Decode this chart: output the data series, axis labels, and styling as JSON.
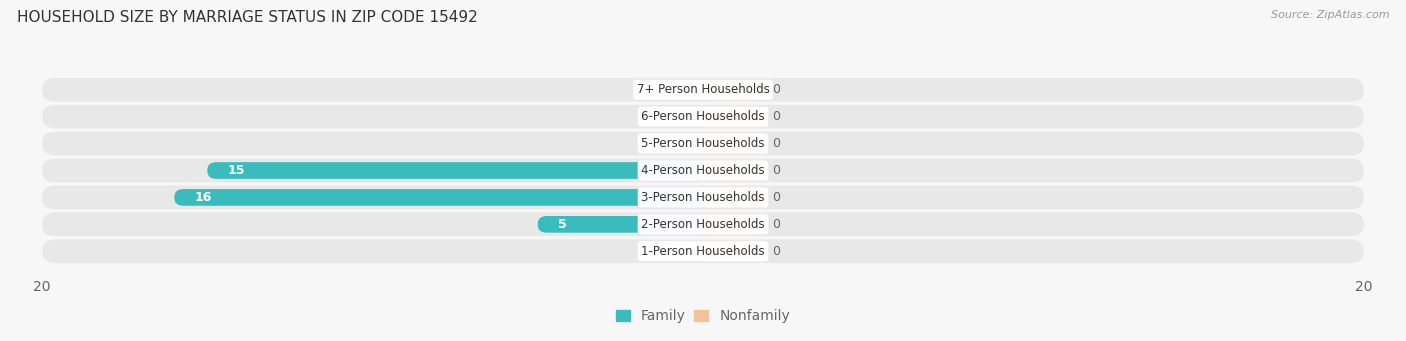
{
  "title": "HOUSEHOLD SIZE BY MARRIAGE STATUS IN ZIP CODE 15492",
  "source": "Source: ZipAtlas.com",
  "categories": [
    "7+ Person Households",
    "6-Person Households",
    "5-Person Households",
    "4-Person Households",
    "3-Person Households",
    "2-Person Households",
    "1-Person Households"
  ],
  "family_values": [
    0,
    0,
    0,
    15,
    16,
    5,
    0
  ],
  "nonfamily_values": [
    0,
    0,
    0,
    0,
    0,
    0,
    0
  ],
  "family_color": "#3BBCBC",
  "nonfamily_color": "#F2C49B",
  "xlim": [
    -20,
    20
  ],
  "background_color": "#f7f7f7",
  "row_bg_color": "#e8e8e8",
  "title_fontsize": 11,
  "axis_fontsize": 10,
  "legend_fontsize": 10,
  "nonfamily_stub": 1.8
}
